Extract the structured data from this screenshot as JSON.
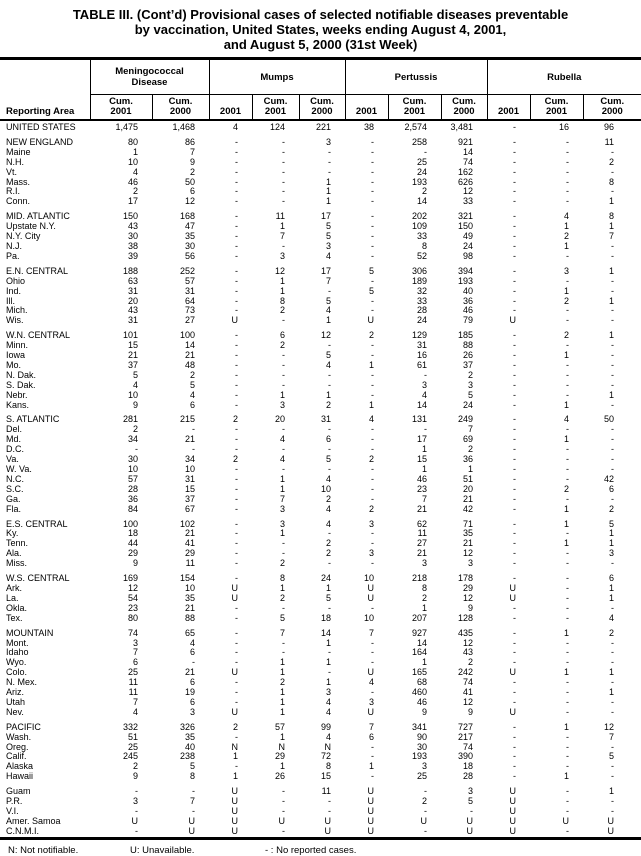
{
  "title": {
    "line1": "TABLE III. (Cont’d) Provisional cases of selected notifiable diseases preventable",
    "line2": "by vaccination, United States, weeks ending August 4, 2001,",
    "line3": "and August 5, 2000 (31st Week)"
  },
  "table": {
    "corner_header": "Reporting Area",
    "groups": [
      {
        "label": "Meningococcal\nDisease",
        "columns": [
          "Cum.\n2001",
          "Cum.\n2000"
        ]
      },
      {
        "label": "Mumps",
        "columns": [
          "2001",
          "Cum.\n2001",
          "Cum.\n2000"
        ]
      },
      {
        "label": "Pertussis",
        "columns": [
          "2001",
          "Cum.\n2001",
          "Cum.\n2000"
        ]
      },
      {
        "label": "Rubella",
        "columns": [
          "2001",
          "Cum.\n2001",
          "Cum.\n2000"
        ]
      }
    ],
    "sections": [
      {
        "rows": [
          [
            "UNITED STATES",
            "1,475",
            "1,468",
            "4",
            "124",
            "221",
            "38",
            "2,574",
            "3,481",
            "-",
            "16",
            "96"
          ]
        ]
      },
      {
        "rows": [
          [
            "NEW ENGLAND",
            "80",
            "86",
            "-",
            "-",
            "3",
            "-",
            "258",
            "921",
            "-",
            "-",
            "11"
          ],
          [
            "Maine",
            "1",
            "7",
            "-",
            "-",
            "-",
            "-",
            "-",
            "14",
            "-",
            "-",
            "-"
          ],
          [
            "N.H.",
            "10",
            "9",
            "-",
            "-",
            "-",
            "-",
            "25",
            "74",
            "-",
            "-",
            "2"
          ],
          [
            "Vt.",
            "4",
            "2",
            "-",
            "-",
            "-",
            "-",
            "24",
            "162",
            "-",
            "-",
            "-"
          ],
          [
            "Mass.",
            "46",
            "50",
            "-",
            "-",
            "1",
            "-",
            "193",
            "626",
            "-",
            "-",
            "8"
          ],
          [
            "R.I.",
            "2",
            "6",
            "-",
            "-",
            "1",
            "-",
            "2",
            "12",
            "-",
            "-",
            "-"
          ],
          [
            "Conn.",
            "17",
            "12",
            "-",
            "-",
            "1",
            "-",
            "14",
            "33",
            "-",
            "-",
            "1"
          ]
        ]
      },
      {
        "rows": [
          [
            "MID. ATLANTIC",
            "150",
            "168",
            "-",
            "11",
            "17",
            "-",
            "202",
            "321",
            "-",
            "4",
            "8"
          ],
          [
            "Upstate N.Y.",
            "43",
            "47",
            "-",
            "1",
            "5",
            "-",
            "109",
            "150",
            "-",
            "1",
            "1"
          ],
          [
            "N.Y. City",
            "30",
            "35",
            "-",
            "7",
            "5",
            "-",
            "33",
            "49",
            "-",
            "2",
            "7"
          ],
          [
            "N.J.",
            "38",
            "30",
            "-",
            "-",
            "3",
            "-",
            "8",
            "24",
            "-",
            "1",
            "-"
          ],
          [
            "Pa.",
            "39",
            "56",
            "-",
            "3",
            "4",
            "-",
            "52",
            "98",
            "-",
            "-",
            "-"
          ]
        ]
      },
      {
        "rows": [
          [
            "E.N. CENTRAL",
            "188",
            "252",
            "-",
            "12",
            "17",
            "5",
            "306",
            "394",
            "-",
            "3",
            "1"
          ],
          [
            "Ohio",
            "63",
            "57",
            "-",
            "1",
            "7",
            "-",
            "189",
            "193",
            "-",
            "-",
            "-"
          ],
          [
            "Ind.",
            "31",
            "31",
            "-",
            "1",
            "-",
            "5",
            "32",
            "40",
            "-",
            "1",
            "-"
          ],
          [
            "Ill.",
            "20",
            "64",
            "-",
            "8",
            "5",
            "-",
            "33",
            "36",
            "-",
            "2",
            "1"
          ],
          [
            "Mich.",
            "43",
            "73",
            "-",
            "2",
            "4",
            "-",
            "28",
            "46",
            "-",
            "-",
            "-"
          ],
          [
            "Wis.",
            "31",
            "27",
            "U",
            "-",
            "1",
            "U",
            "24",
            "79",
            "U",
            "-",
            "-"
          ]
        ]
      },
      {
        "rows": [
          [
            "W.N. CENTRAL",
            "101",
            "100",
            "-",
            "6",
            "12",
            "2",
            "129",
            "185",
            "-",
            "2",
            "1"
          ],
          [
            "Minn.",
            "15",
            "14",
            "-",
            "2",
            "-",
            "-",
            "31",
            "88",
            "-",
            "-",
            "-"
          ],
          [
            "Iowa",
            "21",
            "21",
            "-",
            "-",
            "5",
            "-",
            "16",
            "26",
            "-",
            "1",
            "-"
          ],
          [
            "Mo.",
            "37",
            "48",
            "-",
            "-",
            "4",
            "1",
            "61",
            "37",
            "-",
            "-",
            "-"
          ],
          [
            "N. Dak.",
            "5",
            "2",
            "-",
            "-",
            "-",
            "-",
            "-",
            "2",
            "-",
            "-",
            "-"
          ],
          [
            "S. Dak.",
            "4",
            "5",
            "-",
            "-",
            "-",
            "-",
            "3",
            "3",
            "-",
            "-",
            "-"
          ],
          [
            "Nebr.",
            "10",
            "4",
            "-",
            "1",
            "1",
            "-",
            "4",
            "5",
            "-",
            "-",
            "1"
          ],
          [
            "Kans.",
            "9",
            "6",
            "-",
            "3",
            "2",
            "1",
            "14",
            "24",
            "-",
            "1",
            "-"
          ]
        ]
      },
      {
        "rows": [
          [
            "S. ATLANTIC",
            "281",
            "215",
            "2",
            "20",
            "31",
            "4",
            "131",
            "249",
            "-",
            "4",
            "50"
          ],
          [
            "Del.",
            "2",
            "-",
            "-",
            "-",
            "-",
            "-",
            "-",
            "7",
            "-",
            "-",
            "-"
          ],
          [
            "Md.",
            "34",
            "21",
            "-",
            "4",
            "6",
            "-",
            "17",
            "69",
            "-",
            "1",
            "-"
          ],
          [
            "D.C.",
            "-",
            "-",
            "-",
            "-",
            "-",
            "-",
            "1",
            "2",
            "-",
            "-",
            "-"
          ],
          [
            "Va.",
            "30",
            "34",
            "2",
            "4",
            "5",
            "2",
            "15",
            "36",
            "-",
            "-",
            "-"
          ],
          [
            "W. Va.",
            "10",
            "10",
            "-",
            "-",
            "-",
            "-",
            "1",
            "1",
            "-",
            "-",
            "-"
          ],
          [
            "N.C.",
            "57",
            "31",
            "-",
            "1",
            "4",
            "-",
            "46",
            "51",
            "-",
            "-",
            "42"
          ],
          [
            "S.C.",
            "28",
            "15",
            "-",
            "1",
            "10",
            "-",
            "23",
            "20",
            "-",
            "2",
            "6"
          ],
          [
            "Ga.",
            "36",
            "37",
            "-",
            "7",
            "2",
            "-",
            "7",
            "21",
            "-",
            "-",
            "-"
          ],
          [
            "Fla.",
            "84",
            "67",
            "-",
            "3",
            "4",
            "2",
            "21",
            "42",
            "-",
            "1",
            "2"
          ]
        ]
      },
      {
        "rows": [
          [
            "E.S. CENTRAL",
            "100",
            "102",
            "-",
            "3",
            "4",
            "3",
            "62",
            "71",
            "-",
            "1",
            "5"
          ],
          [
            "Ky.",
            "18",
            "21",
            "-",
            "1",
            "-",
            "-",
            "11",
            "35",
            "-",
            "-",
            "1"
          ],
          [
            "Tenn.",
            "44",
            "41",
            "-",
            "-",
            "2",
            "-",
            "27",
            "21",
            "-",
            "1",
            "1"
          ],
          [
            "Ala.",
            "29",
            "29",
            "-",
            "-",
            "2",
            "3",
            "21",
            "12",
            "-",
            "-",
            "3"
          ],
          [
            "Miss.",
            "9",
            "11",
            "-",
            "2",
            "-",
            "-",
            "3",
            "3",
            "-",
            "-",
            "-"
          ]
        ]
      },
      {
        "rows": [
          [
            "W.S. CENTRAL",
            "169",
            "154",
            "-",
            "8",
            "24",
            "10",
            "218",
            "178",
            "-",
            "-",
            "6"
          ],
          [
            "Ark.",
            "12",
            "10",
            "U",
            "1",
            "1",
            "U",
            "8",
            "29",
            "U",
            "-",
            "1"
          ],
          [
            "La.",
            "54",
            "35",
            "U",
            "2",
            "5",
            "U",
            "2",
            "12",
            "U",
            "-",
            "1"
          ],
          [
            "Okla.",
            "23",
            "21",
            "-",
            "-",
            "-",
            "-",
            "1",
            "9",
            "-",
            "-",
            "-"
          ],
          [
            "Tex.",
            "80",
            "88",
            "-",
            "5",
            "18",
            "10",
            "207",
            "128",
            "-",
            "-",
            "4"
          ]
        ]
      },
      {
        "rows": [
          [
            "MOUNTAIN",
            "74",
            "65",
            "-",
            "7",
            "14",
            "7",
            "927",
            "435",
            "-",
            "1",
            "2"
          ],
          [
            "Mont.",
            "3",
            "4",
            "-",
            "-",
            "1",
            "-",
            "14",
            "12",
            "-",
            "-",
            "-"
          ],
          [
            "Idaho",
            "7",
            "6",
            "-",
            "-",
            "-",
            "-",
            "164",
            "43",
            "-",
            "-",
            "-"
          ],
          [
            "Wyo.",
            "6",
            "-",
            "-",
            "1",
            "1",
            "-",
            "1",
            "2",
            "-",
            "-",
            "-"
          ],
          [
            "Colo.",
            "25",
            "21",
            "U",
            "1",
            "-",
            "U",
            "165",
            "242",
            "U",
            "1",
            "1"
          ],
          [
            "N. Mex.",
            "11",
            "6",
            "-",
            "2",
            "1",
            "4",
            "68",
            "74",
            "-",
            "-",
            "-"
          ],
          [
            "Ariz.",
            "11",
            "19",
            "-",
            "1",
            "3",
            "-",
            "460",
            "41",
            "-",
            "-",
            "1"
          ],
          [
            "Utah",
            "7",
            "6",
            "-",
            "1",
            "4",
            "3",
            "46",
            "12",
            "-",
            "-",
            "-"
          ],
          [
            "Nev.",
            "4",
            "3",
            "U",
            "1",
            "4",
            "U",
            "9",
            "9",
            "U",
            "-",
            "-"
          ]
        ]
      },
      {
        "rows": [
          [
            "PACIFIC",
            "332",
            "326",
            "2",
            "57",
            "99",
            "7",
            "341",
            "727",
            "-",
            "1",
            "12"
          ],
          [
            "Wash.",
            "51",
            "35",
            "-",
            "1",
            "4",
            "6",
            "90",
            "217",
            "-",
            "-",
            "7"
          ],
          [
            "Oreg.",
            "25",
            "40",
            "N",
            "N",
            "N",
            "-",
            "30",
            "74",
            "-",
            "-",
            "-"
          ],
          [
            "Calif.",
            "245",
            "238",
            "1",
            "29",
            "72",
            "-",
            "193",
            "390",
            "-",
            "-",
            "5"
          ],
          [
            "Alaska",
            "2",
            "5",
            "-",
            "1",
            "8",
            "1",
            "3",
            "18",
            "-",
            "-",
            "-"
          ],
          [
            "Hawaii",
            "9",
            "8",
            "1",
            "26",
            "15",
            "-",
            "25",
            "28",
            "-",
            "1",
            "-"
          ]
        ]
      },
      {
        "rows": [
          [
            "Guam",
            "-",
            "-",
            "U",
            "-",
            "11",
            "U",
            "-",
            "3",
            "U",
            "-",
            "1"
          ],
          [
            "P.R.",
            "3",
            "7",
            "U",
            "-",
            "-",
            "U",
            "2",
            "5",
            "U",
            "-",
            "-"
          ],
          [
            "V.I.",
            "-",
            "-",
            "U",
            "-",
            "-",
            "U",
            "-",
            "-",
            "U",
            "-",
            "-"
          ],
          [
            "Amer. Samoa",
            "U",
            "U",
            "U",
            "U",
            "U",
            "U",
            "U",
            "U",
            "U",
            "U",
            "U"
          ],
          [
            "C.N.M.I.",
            "-",
            "U",
            "U",
            "-",
            "U",
            "U",
            "-",
            "U",
            "U",
            "-",
            "U"
          ]
        ]
      }
    ]
  },
  "footnotes": {
    "n": "N: Not notifiable.",
    "u": "U: Unavailable.",
    "dash": "- : No reported cases."
  }
}
